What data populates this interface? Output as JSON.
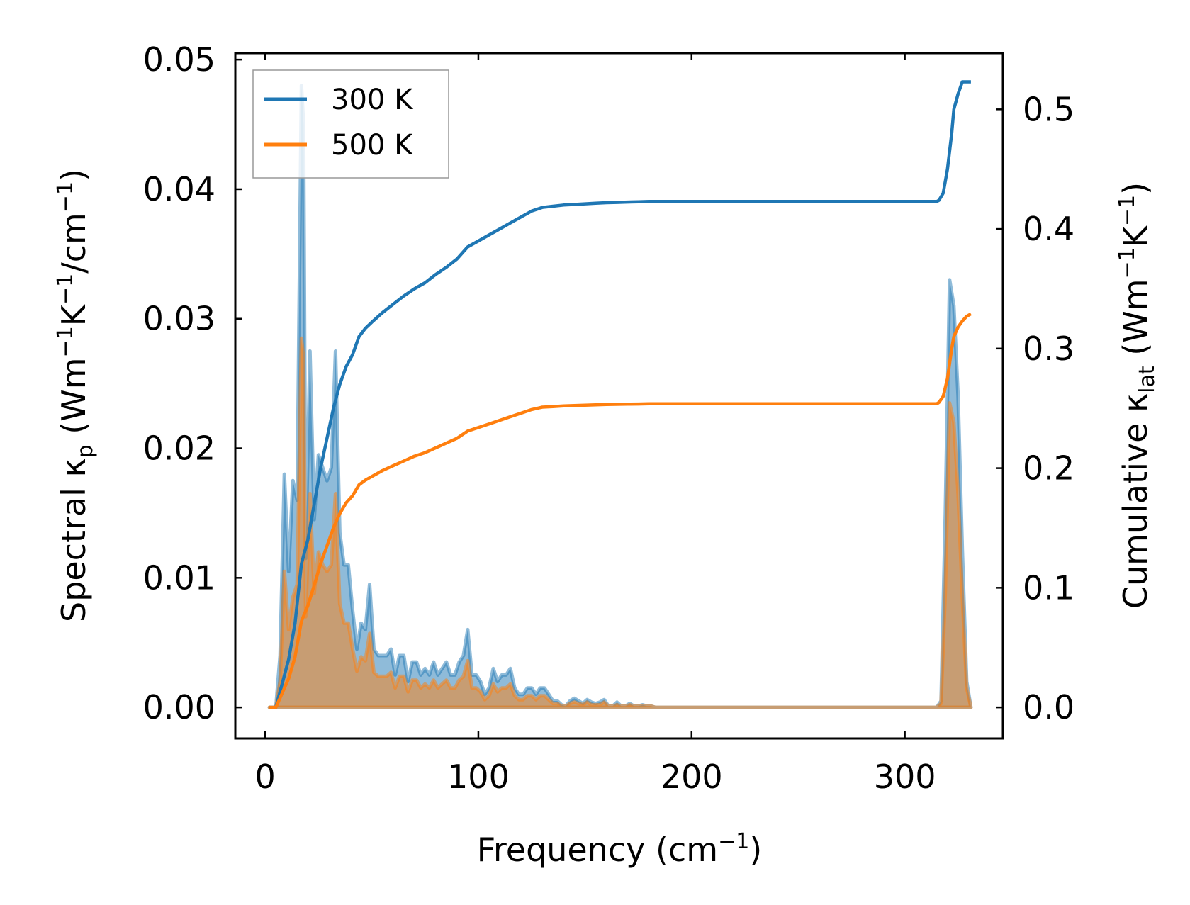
{
  "chart_data": {
    "type": "line",
    "xlabel": {
      "text": "Frequency (cm",
      "sup": "−1",
      "tail": ")"
    },
    "ylabel_left": {
      "pre": "Spectral κ",
      "sub": "p",
      "mid": " (Wm",
      "sup1": "−1",
      "k": "K",
      "sup2": "−1",
      "unit": "/cm",
      "sup3": "−1",
      "tail": ")"
    },
    "ylabel_right": {
      "pre": "Cumulative κ",
      "sub": "lat",
      "mid": " (Wm",
      "sup1": "−1",
      "k": "K",
      "sup2": "−1",
      "tail": ")"
    },
    "xlim": [
      -14,
      346
    ],
    "ylim_left": [
      -0.0024,
      0.0505
    ],
    "ylim_right": [
      -0.026,
      0.547
    ],
    "xticks": [
      0,
      100,
      200,
      300
    ],
    "xtick_labels": [
      "0",
      "100",
      "200",
      "300"
    ],
    "yticks_left": [
      0.0,
      0.01,
      0.02,
      0.03,
      0.04,
      0.05
    ],
    "ytick_labels_left": [
      "0.00",
      "0.01",
      "0.02",
      "0.03",
      "0.04",
      "0.05"
    ],
    "yticks_right": [
      0.0,
      0.1,
      0.2,
      0.3,
      0.4,
      0.5
    ],
    "ytick_labels_right": [
      "0.0",
      "0.1",
      "0.2",
      "0.3",
      "0.4",
      "0.5"
    ],
    "legend": {
      "position": "upper-left"
    },
    "colors": {
      "300K": "#1f77b4",
      "500K": "#ff7f0e",
      "fill300": "#1f77b4",
      "fill500": "#ff7f0e"
    },
    "spectral": {
      "x": [
        2,
        5,
        7,
        9,
        11,
        13,
        15,
        17,
        18,
        19,
        21,
        23,
        25,
        27,
        29,
        31,
        33,
        35,
        37,
        39,
        41,
        43,
        45,
        47,
        49,
        51,
        53,
        55,
        57,
        59,
        61,
        63,
        65,
        67,
        69,
        71,
        73,
        75,
        77,
        79,
        81,
        83,
        85,
        87,
        89,
        91,
        93,
        95,
        97,
        99,
        101,
        103,
        105,
        107,
        109,
        111,
        113,
        115,
        117,
        119,
        121,
        123,
        125,
        127,
        129,
        131,
        133,
        135,
        137,
        139,
        141,
        143,
        145,
        147,
        149,
        151,
        153,
        155,
        157,
        159,
        161,
        163,
        165,
        167,
        169,
        171,
        173,
        175,
        177,
        179,
        181,
        183,
        200,
        250,
        300,
        315,
        317,
        319,
        321,
        323,
        325,
        327,
        329,
        331
      ],
      "series": [
        {
          "name": "300 K",
          "values": [
            0,
            0,
            0.004,
            0.018,
            0.0105,
            0.0175,
            0.016,
            0.048,
            0.045,
            0.0115,
            0.0275,
            0.0145,
            0.0195,
            0.0185,
            0.0175,
            0.0185,
            0.0275,
            0.0135,
            0.011,
            0.011,
            0.0075,
            0.0045,
            0.0065,
            0.006,
            0.0095,
            0.0045,
            0.004,
            0.004,
            0.004,
            0.0045,
            0.0025,
            0.004,
            0.004,
            0.002,
            0.0035,
            0.0035,
            0.0025,
            0.003,
            0.0025,
            0.0035,
            0.0025,
            0.003,
            0.0035,
            0.0025,
            0.0025,
            0.0035,
            0.004,
            0.006,
            0.0025,
            0.0025,
            0.002,
            0.001,
            0.0015,
            0.003,
            0.002,
            0.0025,
            0.0025,
            0.003,
            0.0015,
            0.001,
            0.001,
            0.0015,
            0.0015,
            0.001,
            0.0015,
            0.0015,
            0.001,
            0.0005,
            0.0005,
            0.0002,
            0.0001,
            0.0005,
            0.0007,
            0.0005,
            0.0003,
            0.0006,
            0.0004,
            0.0003,
            0.0004,
            0.0006,
            0.0001,
            0.0001,
            0.0004,
            0.0001,
            0.0001,
            0.0003,
            0.0001,
            0.0001,
            0.0002,
            0.0001,
            0.0001,
            0,
            0,
            0,
            0,
            0,
            0.0005,
            0.015,
            0.033,
            0.031,
            0.024,
            0.012,
            0.002,
            0
          ]
        },
        {
          "name": "500 K",
          "values": [
            0,
            0,
            0.002,
            0.0105,
            0.006,
            0.0085,
            0.0095,
            0.0285,
            0.027,
            0.007,
            0.0165,
            0.0088,
            0.012,
            0.011,
            0.0105,
            0.011,
            0.0165,
            0.008,
            0.0065,
            0.0065,
            0.0045,
            0.0028,
            0.0039,
            0.0036,
            0.0057,
            0.0027,
            0.0024,
            0.0024,
            0.0024,
            0.0027,
            0.0015,
            0.0024,
            0.0024,
            0.0012,
            0.0021,
            0.0021,
            0.0015,
            0.0018,
            0.0015,
            0.0021,
            0.0015,
            0.0018,
            0.0021,
            0.0015,
            0.0015,
            0.0021,
            0.0024,
            0.0036,
            0.0015,
            0.0015,
            0.0012,
            0.0006,
            0.0009,
            0.0018,
            0.0012,
            0.0015,
            0.0015,
            0.0018,
            0.0009,
            0.0006,
            0.0006,
            0.0009,
            0.0009,
            0.0006,
            0.0009,
            0.0009,
            0.0006,
            0.0003,
            0.0003,
            0.0001,
            0.0001,
            0.0003,
            0.0004,
            0.0003,
            0.0002,
            0.0004,
            0.0002,
            0.0002,
            0.0002,
            0.0004,
            0.0001,
            0.0001,
            0.0002,
            0.0001,
            0.0001,
            0.0002,
            0.0001,
            0.0001,
            0.0001,
            0.0001,
            0.0001,
            0,
            0,
            0,
            0,
            0,
            0.0003,
            0.009,
            0.0235,
            0.022,
            0.0165,
            0.0085,
            0.0015,
            0
          ]
        }
      ]
    },
    "cumulative": {
      "x": [
        2,
        5,
        8,
        11,
        14,
        17,
        20,
        23,
        26,
        29,
        32,
        35,
        38,
        41,
        44,
        47,
        50,
        55,
        60,
        65,
        70,
        75,
        80,
        85,
        90,
        95,
        100,
        105,
        110,
        115,
        120,
        125,
        130,
        135,
        140,
        145,
        150,
        155,
        160,
        165,
        170,
        175,
        180,
        190,
        200,
        250,
        300,
        315,
        316,
        318,
        320,
        322,
        323,
        325,
        327,
        329,
        331
      ],
      "series": [
        {
          "name": "300 K",
          "values": [
            0,
            0,
            0.02,
            0.04,
            0.07,
            0.12,
            0.14,
            0.17,
            0.2,
            0.225,
            0.25,
            0.27,
            0.285,
            0.295,
            0.31,
            0.317,
            0.322,
            0.33,
            0.337,
            0.344,
            0.35,
            0.355,
            0.362,
            0.368,
            0.375,
            0.385,
            0.39,
            0.395,
            0.4,
            0.405,
            0.41,
            0.415,
            0.418,
            0.419,
            0.42,
            0.4205,
            0.421,
            0.4215,
            0.422,
            0.4222,
            0.4225,
            0.4227,
            0.423,
            0.423,
            0.423,
            0.423,
            0.423,
            0.423,
            0.424,
            0.43,
            0.45,
            0.48,
            0.5,
            0.513,
            0.523,
            0.523,
            0.523
          ]
        },
        {
          "name": "500 K",
          "values": [
            0,
            0,
            0.012,
            0.024,
            0.042,
            0.072,
            0.085,
            0.102,
            0.12,
            0.135,
            0.15,
            0.162,
            0.171,
            0.177,
            0.186,
            0.19,
            0.193,
            0.198,
            0.202,
            0.206,
            0.21,
            0.213,
            0.217,
            0.221,
            0.225,
            0.231,
            0.234,
            0.237,
            0.24,
            0.243,
            0.246,
            0.249,
            0.251,
            0.2515,
            0.252,
            0.2523,
            0.2526,
            0.2529,
            0.2532,
            0.2534,
            0.2535,
            0.2536,
            0.2538,
            0.2538,
            0.2538,
            0.2538,
            0.2538,
            0.2538,
            0.255,
            0.26,
            0.275,
            0.3,
            0.31,
            0.318,
            0.323,
            0.327,
            0.329
          ]
        }
      ]
    }
  }
}
